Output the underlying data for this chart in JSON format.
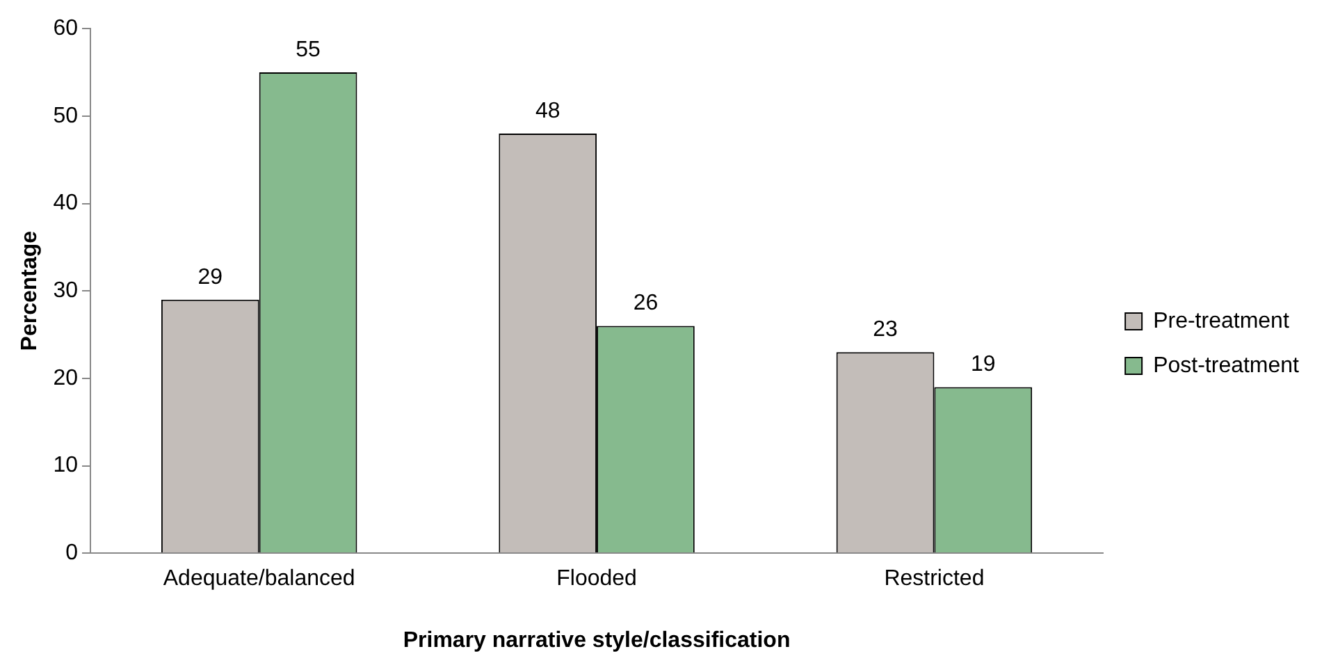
{
  "chart_data": {
    "type": "bar",
    "xlabel": "Primary narrative style/classification",
    "ylabel": "Percentage",
    "categories": [
      "Adequate/balanced",
      "Flooded",
      "Restricted"
    ],
    "series": [
      {
        "name": "Pre-treatment",
        "color": "#c3bdb9",
        "values": [
          29,
          48,
          23
        ]
      },
      {
        "name": "Post-treatment",
        "color": "#86ba8e",
        "values": [
          55,
          26,
          19
        ]
      }
    ],
    "ylim": [
      0,
      60
    ],
    "yticks": [
      0,
      10,
      20,
      30,
      40,
      50,
      60
    ],
    "grid": false,
    "legend": "right",
    "data_labels": true
  }
}
